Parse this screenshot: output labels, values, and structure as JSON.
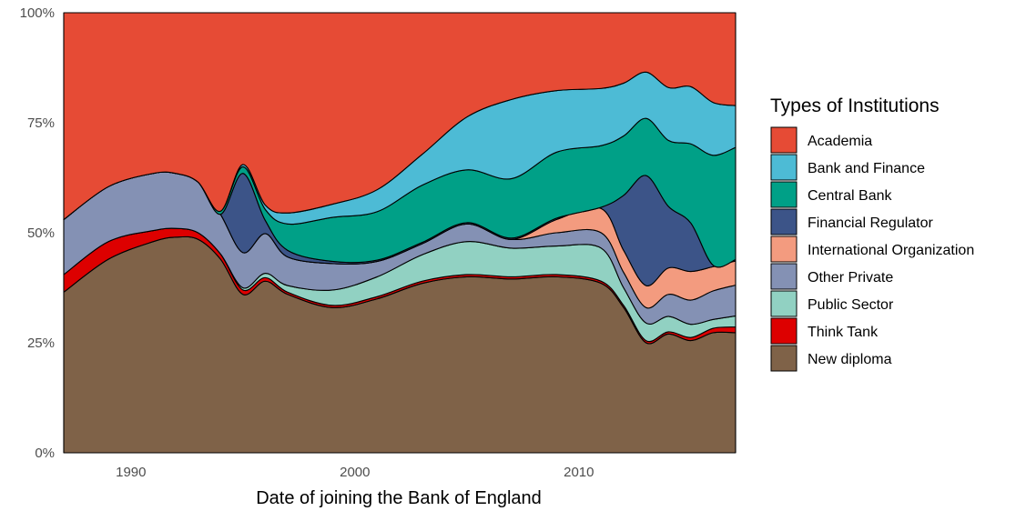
{
  "chart_data": {
    "type": "area",
    "stacked": "percent",
    "title": "",
    "xlabel": "Date of joining the Bank of England",
    "ylabel": "",
    "xlim": [
      1987,
      2017
    ],
    "ylim": [
      0,
      100
    ],
    "x_ticks": [
      1990,
      2000,
      2010
    ],
    "y_ticks": [
      {
        "value": 0,
        "label": "0%"
      },
      {
        "value": 25,
        "label": "25%"
      },
      {
        "value": 50,
        "label": "50%"
      },
      {
        "value": 75,
        "label": "75%"
      },
      {
        "value": 100,
        "label": "100%"
      }
    ],
    "grid": false,
    "legend": {
      "title": "Types of Institutions",
      "position": "right"
    },
    "x": [
      1987,
      1989,
      1991,
      1992,
      1993,
      1994,
      1995,
      1996,
      1997,
      1999,
      2001,
      2003,
      2005,
      2007,
      2009,
      2011,
      2012,
      2013,
      2014,
      2015,
      2016,
      2017
    ],
    "series": [
      {
        "name": "New diploma",
        "color": "#7f6248",
        "values": [
          36.5,
          44,
          48,
          49,
          48.5,
          44,
          36,
          39,
          36,
          33,
          35,
          38.5,
          40,
          39.5,
          40,
          38.5,
          33,
          25,
          27,
          25.5,
          27.3,
          27.3
        ]
      },
      {
        "name": "Think Tank",
        "color": "#dd0000",
        "values": [
          4,
          4,
          2.5,
          2,
          1.5,
          1.2,
          1,
          0.8,
          0.5,
          0.5,
          0.5,
          0.5,
          0.5,
          0.5,
          0.5,
          0.5,
          0.5,
          0.5,
          0.5,
          0.7,
          1,
          1.3
        ]
      },
      {
        "name": "Public Sector",
        "color": "#91d1c2",
        "values": [
          0,
          0,
          0,
          0,
          0,
          0,
          0.5,
          1,
          1.5,
          3.5,
          4.5,
          6,
          7.5,
          6.5,
          6.5,
          7.5,
          4,
          4,
          3.5,
          3,
          2,
          2.5
        ]
      },
      {
        "name": "Other Private",
        "color": "#8491b4",
        "values": [
          12.5,
          12.5,
          13,
          12.5,
          11.5,
          9,
          8,
          9,
          6.5,
          6,
          3.5,
          2.5,
          4,
          2,
          3,
          3.5,
          3.5,
          3.5,
          5,
          5.5,
          6.5,
          7
        ]
      },
      {
        "name": "International Organization",
        "color": "#f39b7f",
        "values": [
          0,
          0,
          0,
          0,
          0,
          0,
          0,
          0,
          0,
          0,
          0,
          0,
          0,
          0,
          3,
          5.5,
          5,
          5,
          6,
          6.5,
          5.5,
          5.5
        ]
      },
      {
        "name": "Financial Regulator",
        "color": "#3c5488",
        "values": [
          0,
          0,
          0,
          0,
          0,
          0,
          18,
          3,
          1.5,
          0.5,
          0.3,
          0.3,
          0.3,
          0.3,
          0.3,
          0.3,
          12.5,
          25,
          14,
          11,
          0.3,
          0.3
        ]
      },
      {
        "name": "Central Bank",
        "color": "#00a087",
        "values": [
          0,
          0,
          0,
          0,
          0,
          0.7,
          1.5,
          2.5,
          6,
          10,
          11,
          13,
          12,
          13.5,
          15,
          14,
          13.5,
          13,
          15,
          18,
          25,
          25.5
        ]
      },
      {
        "name": "Bank and Finance",
        "color": "#4dbbd5",
        "values": [
          0,
          0,
          0,
          0,
          0,
          0,
          0.5,
          1,
          2.5,
          3,
          5,
          7,
          12,
          18,
          14,
          13,
          12,
          10.5,
          12,
          13,
          12,
          9.5
        ]
      },
      {
        "name": "Academia",
        "color": "#e64b35",
        "values": [
          47,
          39.5,
          36.5,
          36.5,
          38.5,
          45.1,
          34.5,
          43.7,
          45.5,
          43.5,
          40.2,
          32.2,
          23.7,
          19.7,
          17.7,
          17.2,
          16,
          13.5,
          17,
          16.8,
          20.4,
          21.1
        ]
      }
    ]
  }
}
